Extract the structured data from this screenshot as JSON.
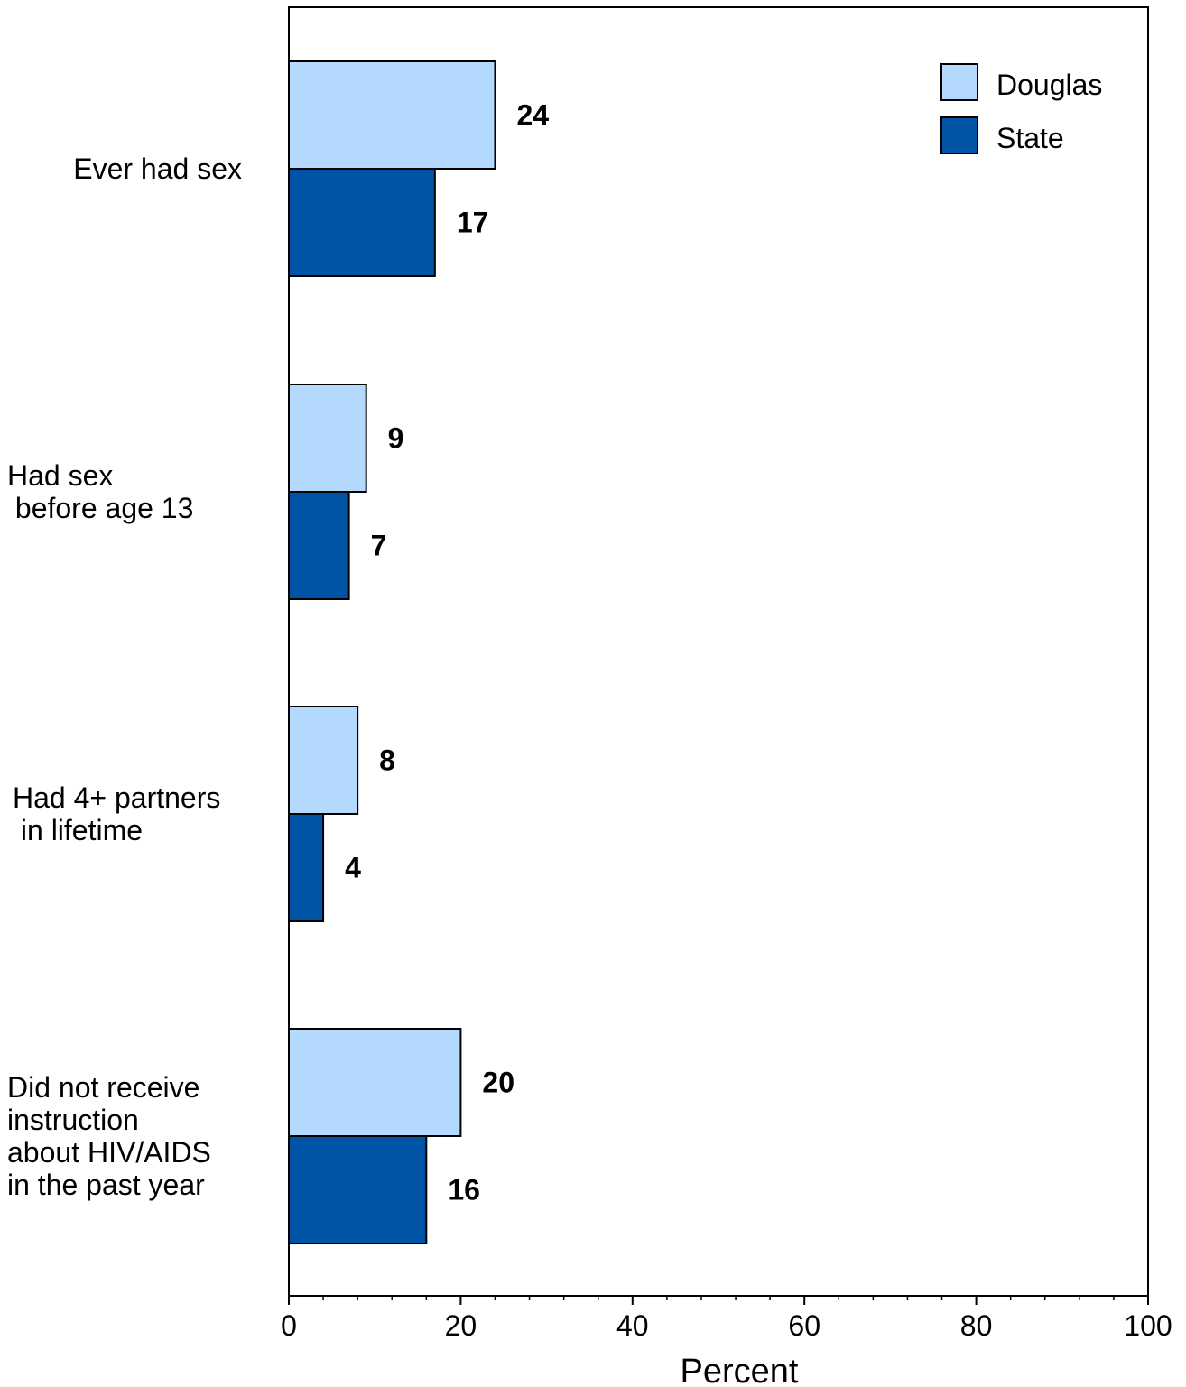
{
  "chart_data": {
    "type": "bar",
    "orientation": "horizontal",
    "categories": [
      [
        "Ever had sex"
      ],
      [
        "Had sex",
        " before age 13"
      ],
      [
        "Had 4+ partners",
        " in lifetime"
      ],
      [
        "Did not receive",
        "instruction",
        "about HIV/AIDS",
        "in the past year"
      ]
    ],
    "series": [
      {
        "name": "Douglas",
        "values": [
          24,
          9,
          8,
          20
        ],
        "color": "#b3d9ff"
      },
      {
        "name": "State",
        "values": [
          17,
          7,
          4,
          16
        ],
        "color": "#0054a6"
      }
    ],
    "xlabel": "Percent",
    "xlim": [
      0,
      100
    ],
    "xticks": [
      0,
      20,
      40,
      60,
      80,
      100
    ],
    "minor_tick_step": 4,
    "legend_position": "top-right",
    "grid": false
  }
}
